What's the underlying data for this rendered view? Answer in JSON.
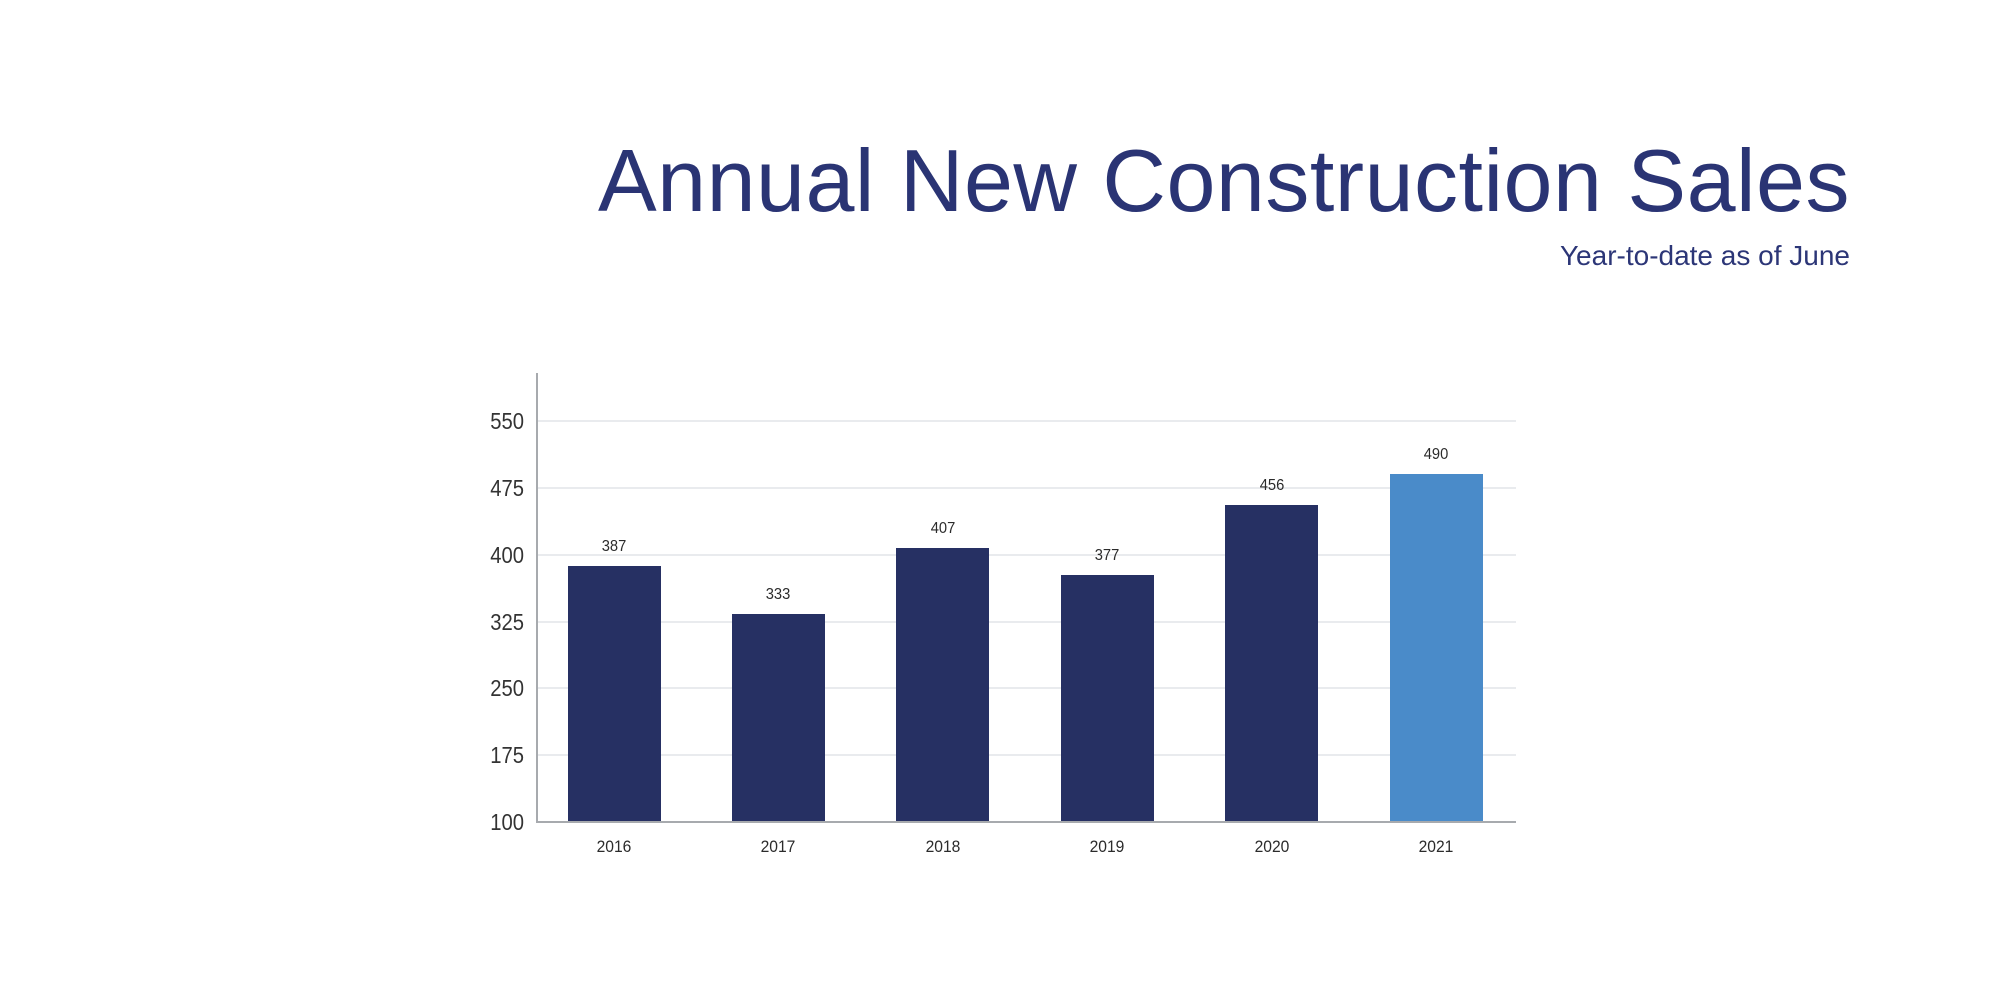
{
  "page": {
    "background_color": "#ffffff"
  },
  "header": {
    "title": "Annual New Construction Sales",
    "subtitle": "Year-to-date as of June",
    "title_color": "#2a3474",
    "subtitle_color": "#2c3677"
  },
  "chart_data": {
    "type": "bar",
    "title": "Annual New Construction Sales",
    "subtitle": "Year-to-date as of June",
    "categories": [
      "2016",
      "2017",
      "2018",
      "2019",
      "2020",
      "2021"
    ],
    "values": [
      387,
      333,
      407,
      377,
      456,
      490
    ],
    "series": [
      {
        "name": "Annual new construction sales",
        "values": [
          387,
          333,
          407,
          377,
          456,
          490
        ]
      }
    ],
    "data_labels": [
      "387",
      "333",
      "407",
      "377",
      "456",
      "490"
    ],
    "highlight_index": 5,
    "xlabel": "",
    "ylabel": "",
    "y_ticks": [
      100,
      175,
      250,
      325,
      400,
      475,
      550
    ],
    "ylim": [
      100,
      600
    ],
    "grid": true,
    "legend": "none",
    "colors": {
      "bar_default": "#263063",
      "bar_highlight": "#4a8bc9",
      "gridline": "#e9ebee",
      "axis_line": "#a7aaae",
      "tick_label": "#333333",
      "data_label": "#2b2b2b"
    }
  }
}
